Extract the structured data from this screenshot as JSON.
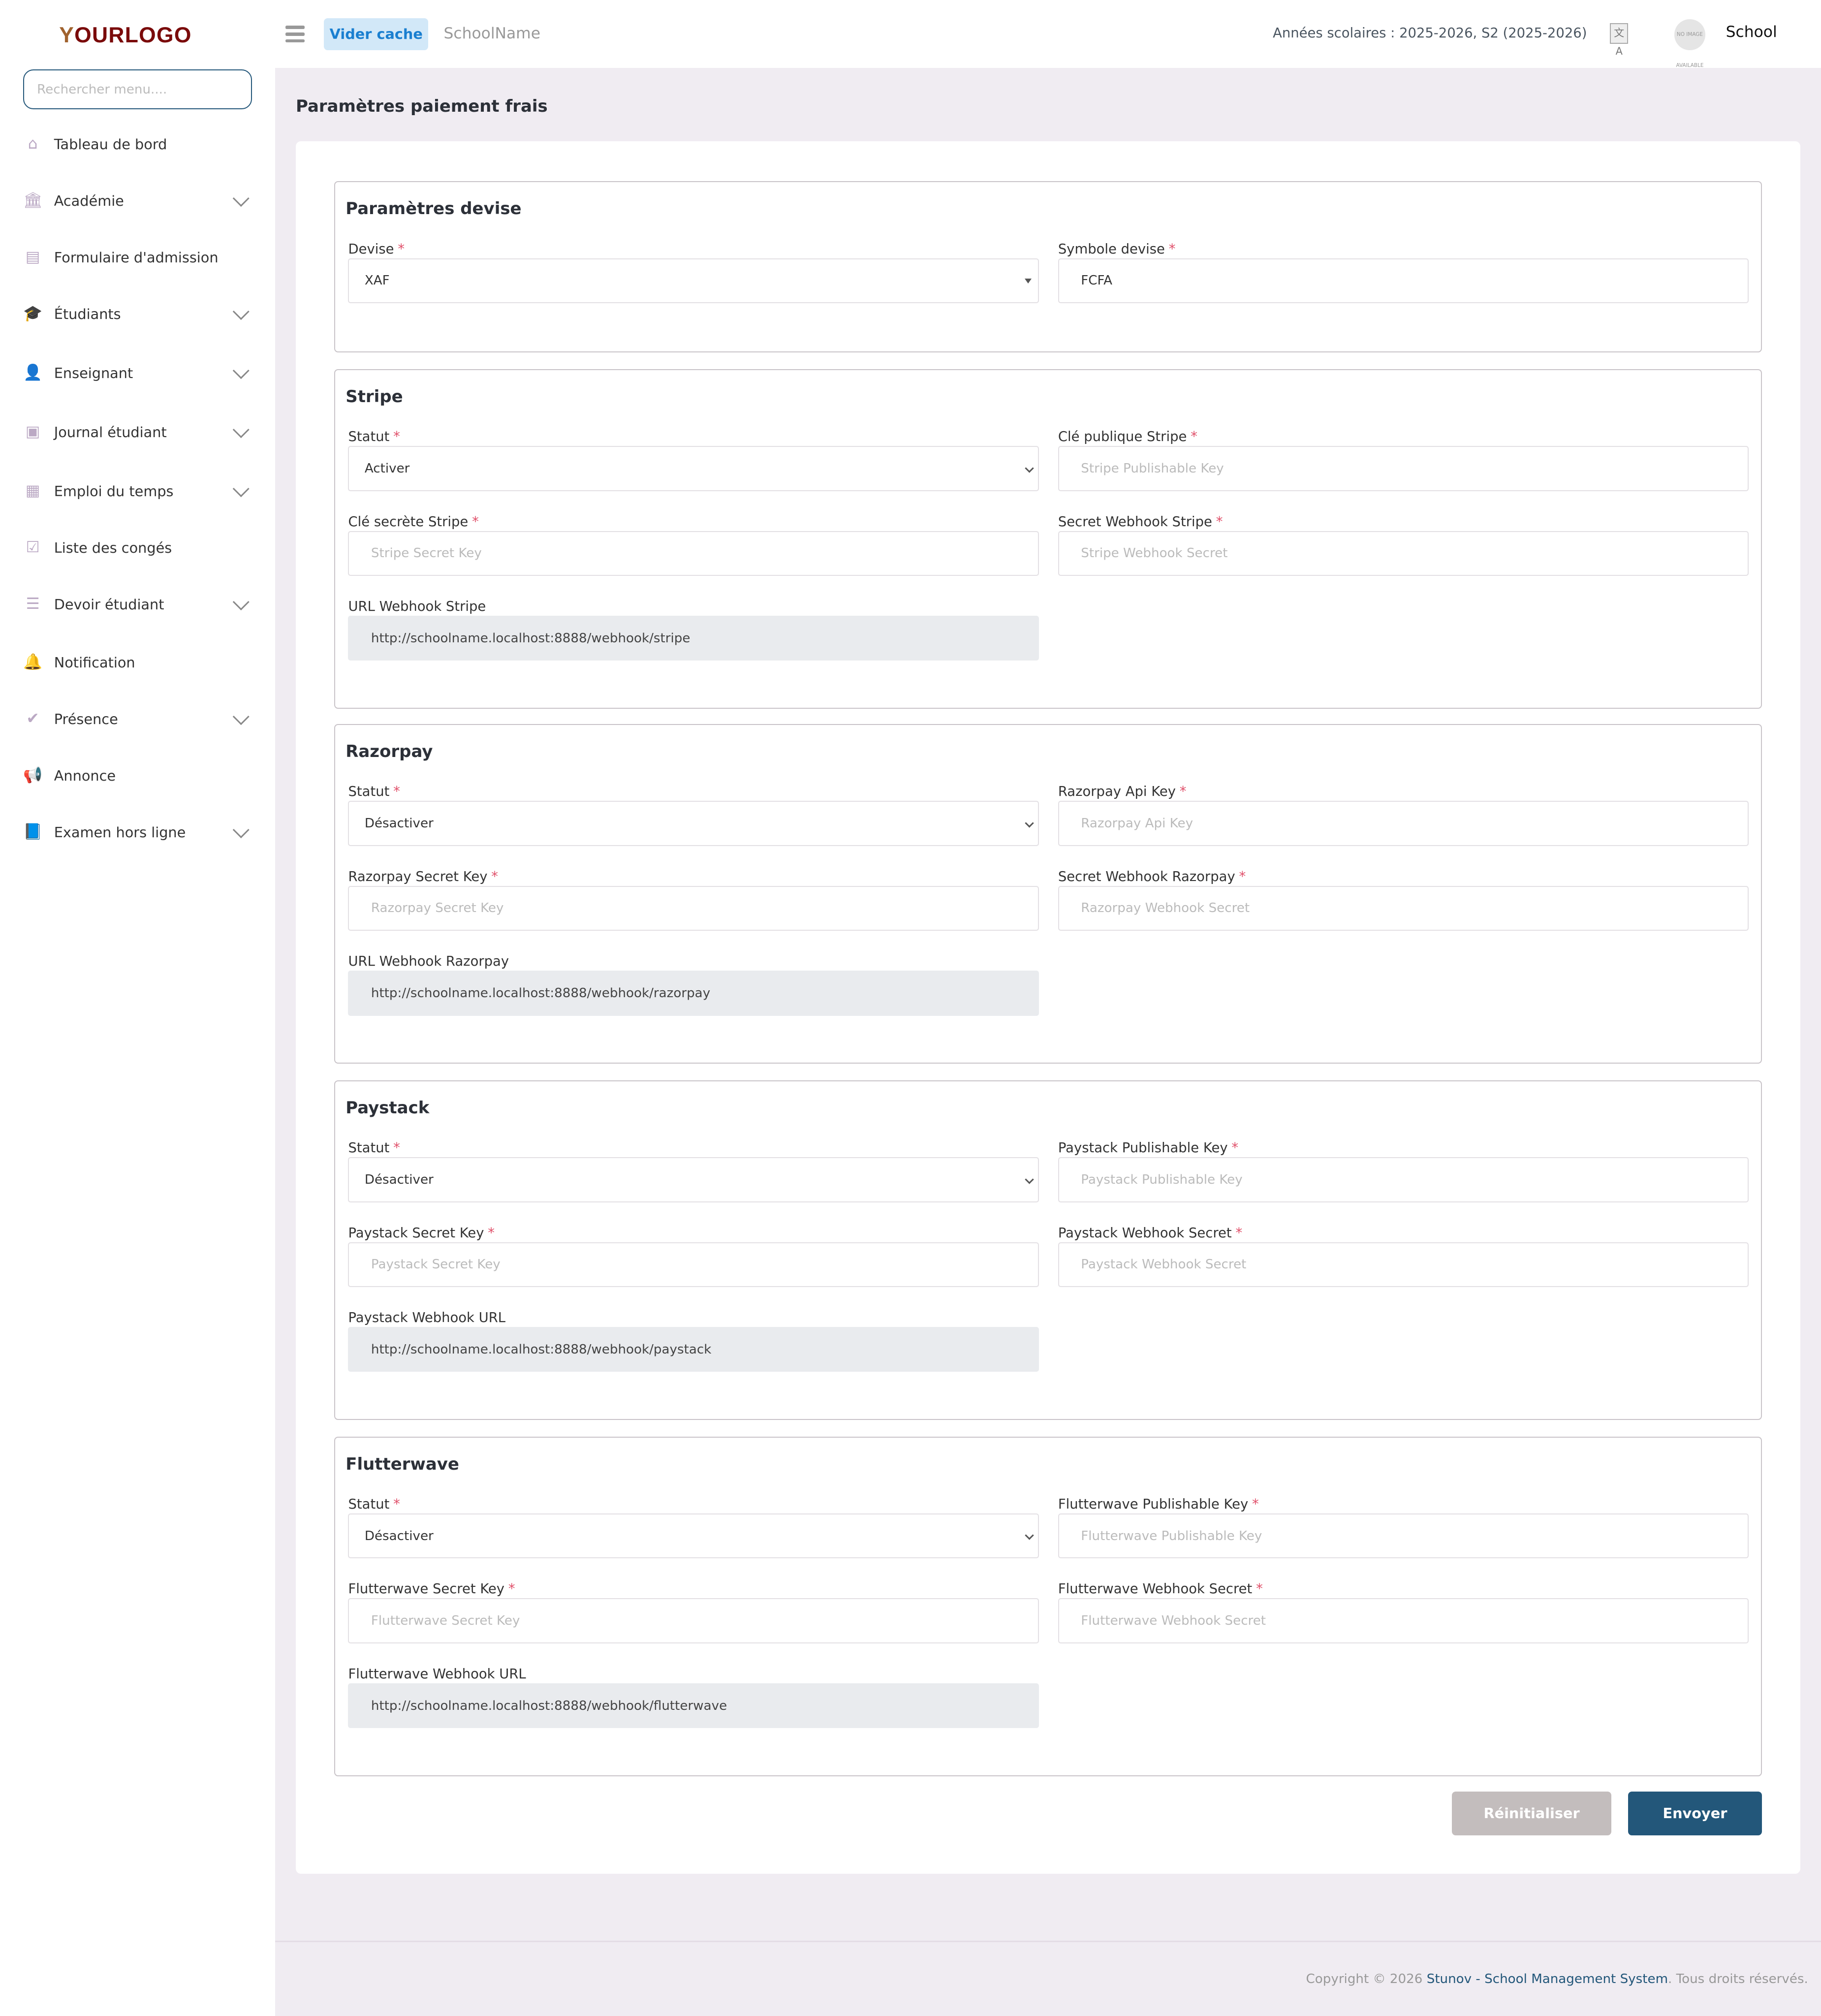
{
  "brand": {
    "logo_text": "OURLOGO",
    "logo_initial": "Y",
    "accent": "#23577a",
    "logo_color": "#7a0a0a"
  },
  "sidebar": {
    "search_placeholder": "Rechercher menu....",
    "items": [
      {
        "label": "Tableau de bord",
        "icon": "home-icon",
        "glyph": "⌂",
        "chevron": false
      },
      {
        "label": "Académie",
        "icon": "bank-icon",
        "glyph": "🏛",
        "chevron": true
      },
      {
        "label": "Formulaire d'admission",
        "icon": "form-icon",
        "glyph": "▤",
        "chevron": false
      },
      {
        "label": "Étudiants",
        "icon": "graduation-cap-icon",
        "glyph": "🎓",
        "chevron": true
      },
      {
        "label": "Enseignant",
        "icon": "user-icon",
        "glyph": "👤",
        "chevron": true
      },
      {
        "label": "Journal étudiant",
        "icon": "journal-icon",
        "glyph": "▣",
        "chevron": true
      },
      {
        "label": "Emploi du temps",
        "icon": "calendar-icon",
        "glyph": "▦",
        "chevron": true
      },
      {
        "label": "Liste des congés",
        "icon": "calendar-check-icon",
        "glyph": "☑",
        "chevron": false
      },
      {
        "label": "Devoir étudiant",
        "icon": "list-icon",
        "glyph": "☰",
        "chevron": true
      },
      {
        "label": "Notification",
        "icon": "bell-icon",
        "glyph": "🔔",
        "chevron": false
      },
      {
        "label": "Présence",
        "icon": "check-icon",
        "glyph": "✔",
        "chevron": true
      },
      {
        "label": "Annonce",
        "icon": "megaphone-icon",
        "glyph": "📢",
        "chevron": false
      },
      {
        "label": "Examen hors ligne",
        "icon": "book-icon",
        "glyph": "📘",
        "chevron": true
      }
    ]
  },
  "header": {
    "clear_cache": "Vider cache",
    "school_name": "SchoolName",
    "years": "Années scolaires : 2025-2026, S2 (2025-2026)",
    "avatar_text": "NO IMAGE AVAILABLE",
    "user": "School"
  },
  "page": {
    "title": "Paramètres paiement frais"
  },
  "sections": [
    {
      "title": "Paramètres devise",
      "fields": [
        {
          "label": "Devise",
          "required": true,
          "type": "select-tri",
          "value": "XAF"
        },
        {
          "label": "Symbole devise",
          "required": true,
          "type": "input",
          "value": "FCFA"
        }
      ]
    },
    {
      "title": "Stripe",
      "fields": [
        {
          "label": "Statut",
          "required": true,
          "type": "select",
          "value": "Activer"
        },
        {
          "label": "Clé publique Stripe",
          "required": true,
          "type": "input",
          "placeholder": "Stripe Publishable Key"
        },
        {
          "label": "Clé secrète Stripe",
          "required": true,
          "type": "input",
          "placeholder": "Stripe Secret Key"
        },
        {
          "label": "Secret Webhook Stripe",
          "required": true,
          "type": "input",
          "placeholder": "Stripe Webhook Secret"
        },
        {
          "label": "URL Webhook Stripe",
          "required": false,
          "type": "readonly",
          "value": "http://schoolname.localhost:8888/webhook/stripe"
        }
      ]
    },
    {
      "title": "Razorpay",
      "fields": [
        {
          "label": "Statut",
          "required": true,
          "type": "select",
          "value": "Désactiver"
        },
        {
          "label": "Razorpay Api Key",
          "required": true,
          "type": "input",
          "placeholder": "Razorpay Api Key"
        },
        {
          "label": "Razorpay Secret Key",
          "required": true,
          "type": "input",
          "placeholder": "Razorpay Secret Key"
        },
        {
          "label": "Secret Webhook Razorpay",
          "required": true,
          "type": "input",
          "placeholder": "Razorpay Webhook Secret"
        },
        {
          "label": "URL Webhook Razorpay",
          "required": false,
          "type": "readonly",
          "value": "http://schoolname.localhost:8888/webhook/razorpay"
        }
      ]
    },
    {
      "title": "Paystack",
      "fields": [
        {
          "label": "Statut",
          "required": true,
          "type": "select",
          "value": "Désactiver"
        },
        {
          "label": "Paystack Publishable Key",
          "required": true,
          "type": "input",
          "placeholder": "Paystack Publishable Key"
        },
        {
          "label": "Paystack Secret Key",
          "required": true,
          "type": "input",
          "placeholder": "Paystack Secret Key"
        },
        {
          "label": "Paystack Webhook Secret",
          "required": true,
          "type": "input",
          "placeholder": "Paystack Webhook Secret"
        },
        {
          "label": "Paystack Webhook URL",
          "required": false,
          "type": "readonly",
          "value": "http://schoolname.localhost:8888/webhook/paystack"
        }
      ]
    },
    {
      "title": "Flutterwave",
      "fields": [
        {
          "label": "Statut",
          "required": true,
          "type": "select",
          "value": "Désactiver"
        },
        {
          "label": "Flutterwave Publishable Key",
          "required": true,
          "type": "input",
          "placeholder": "Flutterwave Publishable Key"
        },
        {
          "label": "Flutterwave Secret Key",
          "required": true,
          "type": "input",
          "placeholder": "Flutterwave Secret Key"
        },
        {
          "label": "Flutterwave Webhook Secret",
          "required": true,
          "type": "input",
          "placeholder": "Flutterwave Webhook Secret"
        },
        {
          "label": "Flutterwave Webhook URL",
          "required": false,
          "type": "readonly",
          "value": "http://schoolname.localhost:8888/webhook/flutterwave"
        }
      ]
    }
  ],
  "actions": {
    "reset": "Réinitialiser",
    "submit": "Envoyer"
  },
  "footer": {
    "prefix": "Copyright © 2026 ",
    "link": "Stunov - School Management System",
    "suffix": ". Tous droits réservés."
  },
  "required_mark": "*"
}
